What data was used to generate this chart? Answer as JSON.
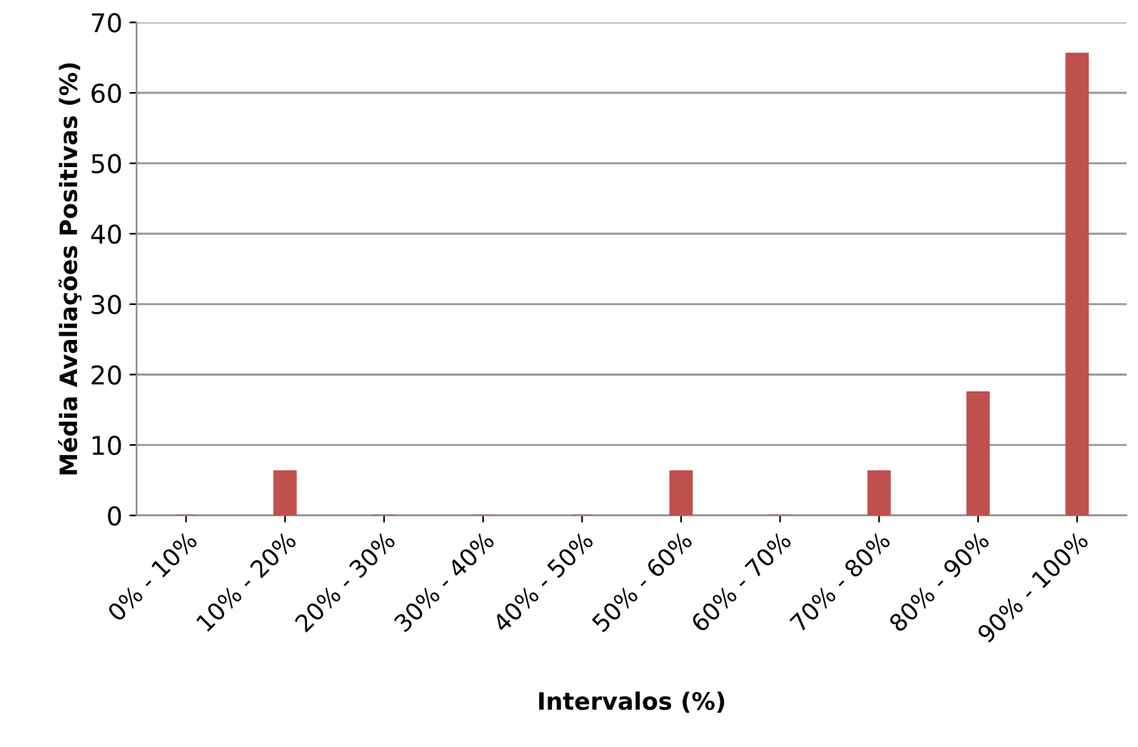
{
  "chart_data": {
    "type": "bar",
    "xlabel": "Intervalos (%)",
    "ylabel": "Média Avaliações Positivas (%)",
    "categories": [
      "0% - 10%",
      "10% - 20%",
      "20% - 30%",
      "30% - 40%",
      "40% - 50%",
      "50% - 60%",
      "60% - 70%",
      "70% - 80%",
      "80% - 90%",
      "90% - 100%"
    ],
    "values": [
      0,
      6.3,
      0,
      0,
      0,
      6.3,
      0,
      6.3,
      17.5,
      65.6
    ],
    "color": "#c0504d",
    "ylim": [
      0,
      70
    ],
    "yticks": [
      0,
      10,
      20,
      30,
      40,
      50,
      60,
      70
    ],
    "grid": "y",
    "legend": false
  }
}
